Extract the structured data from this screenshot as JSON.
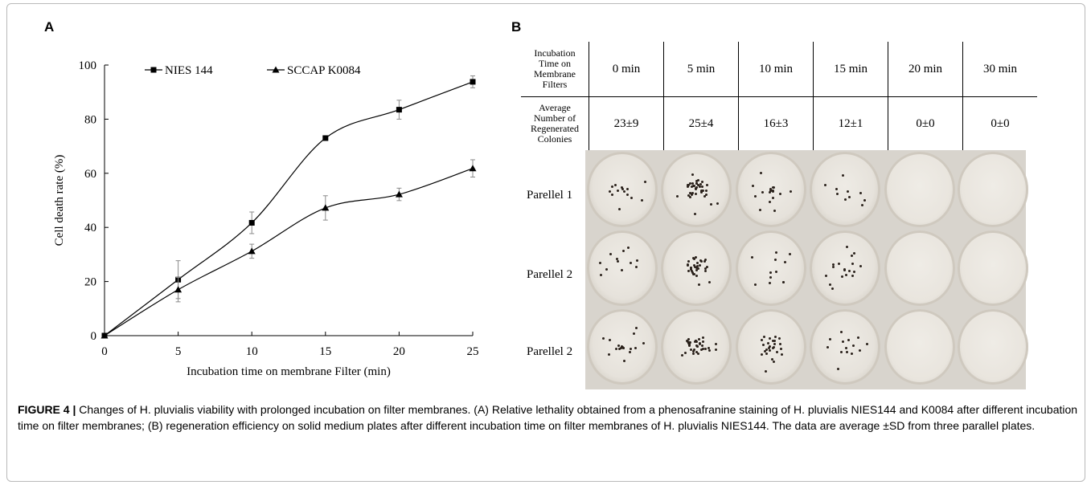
{
  "panel_a_label": "A",
  "panel_b_label": "B",
  "chart_data": {
    "type": "line",
    "xlabel": "Incubation time on membrane Filter (min)",
    "ylabel": "Cell death rate (%)",
    "x": [
      0,
      5,
      10,
      15,
      20,
      25
    ],
    "xticks": [
      "0",
      "5",
      "10",
      "15",
      "20",
      "25"
    ],
    "yticks": [
      "0",
      "20",
      "40",
      "60",
      "80",
      "100"
    ],
    "xlim": [
      0,
      25
    ],
    "ylim": [
      0,
      100
    ],
    "grid": false,
    "legend_position": "top-left",
    "series": [
      {
        "name": "NIES 144",
        "marker": "square",
        "values": [
          0,
          20.7,
          41.7,
          73,
          83.5,
          93.8
        ],
        "errors": [
          0,
          7,
          4,
          0.8,
          3.5,
          2.2
        ]
      },
      {
        "name": "SCCAP K0084",
        "marker": "triangle",
        "values": [
          0,
          17,
          31.2,
          47.2,
          52.2,
          61.8
        ],
        "errors": [
          0,
          4.5,
          2.6,
          4.5,
          2.3,
          3.2
        ]
      }
    ]
  },
  "table": {
    "row1_label": [
      "Incubation",
      "Time on",
      "Membrane",
      "Filters"
    ],
    "row2_label": [
      "Average",
      "Number of",
      "Regenerated",
      "Colonies"
    ],
    "times": [
      "0 min",
      "5 min",
      "10 min",
      "15 min",
      "20 min",
      "30 min"
    ],
    "colonies": [
      "23±9",
      "25±4",
      "16±3",
      "12±1",
      "0±0",
      "0±0"
    ]
  },
  "plates": {
    "row_labels": [
      "Parellel 1",
      "Parellel 2",
      "Parellel 2"
    ]
  },
  "caption": {
    "label": "FIGURE 4 |",
    "text": " Changes of H. pluvialis viability with prolonged incubation on filter membranes. (A) Relative lethality obtained from a phenosafranine staining of H. pluvialis NIES144 and K0084 after different incubation time on filter membranes; (B) regeneration efficiency on solid medium plates after different incubation time on filter membranes of H. pluvialis NIES144. The data are average ±SD from three parallel plates."
  }
}
